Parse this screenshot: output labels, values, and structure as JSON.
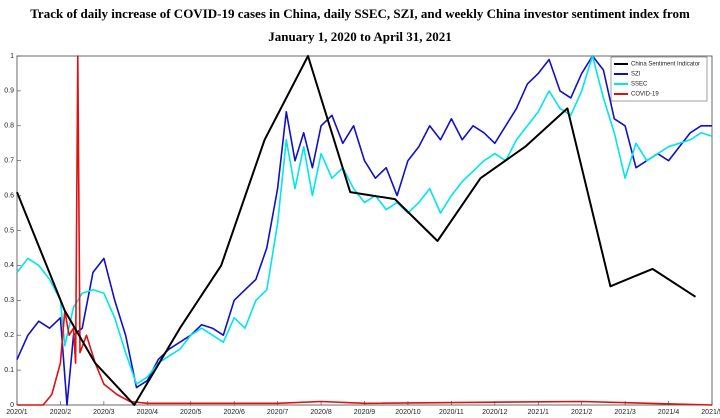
{
  "chart_data": {
    "type": "line",
    "title": [
      "Track of daily increase of COVID-19 cases in China, daily SSEC, SZI, and weekly China investor sentiment index from",
      "January 1, 2020 to April 31, 2021"
    ],
    "xlim": [
      0,
      16
    ],
    "xticks": [
      {
        "value": 0,
        "label": "2020/1"
      },
      {
        "value": 1,
        "label": "2020/2"
      },
      {
        "value": 2,
        "label": "2020/3"
      },
      {
        "value": 3,
        "label": "2020/4"
      },
      {
        "value": 4,
        "label": "2020/5"
      },
      {
        "value": 5,
        "label": "2020/6"
      },
      {
        "value": 6,
        "label": "2020/7"
      },
      {
        "value": 7,
        "label": "2020/8"
      },
      {
        "value": 8,
        "label": "2020/9"
      },
      {
        "value": 9,
        "label": "2020/10"
      },
      {
        "value": 10,
        "label": "2020/11"
      },
      {
        "value": 11,
        "label": "2020/12"
      },
      {
        "value": 12,
        "label": "2021/1"
      },
      {
        "value": 13,
        "label": "2021/2"
      },
      {
        "value": 14,
        "label": "2021/3"
      },
      {
        "value": 15,
        "label": "2021/4"
      },
      {
        "value": 16,
        "label": "2021/5"
      }
    ],
    "ylim": [
      0,
      1
    ],
    "yticks": [
      0,
      0.1,
      0.2,
      0.3,
      0.4,
      0.5,
      0.6,
      0.7,
      0.8,
      0.9,
      1
    ],
    "grid": false,
    "legend": "top-right",
    "series": [
      {
        "name": "China Sentiment Indicator",
        "color": "#000000",
        "width": 2,
        "x": [
          0,
          1.1,
          1.8,
          2.7,
          3.75,
          4.7,
          5.7,
          6.7,
          7.67,
          8.7,
          9.68,
          10.67,
          11.7,
          12.67,
          13.66,
          14.63,
          15.62
        ],
        "values": [
          0.61,
          0.27,
          0.12,
          0,
          0.22,
          0.4,
          0.76,
          1.0,
          0.61,
          0.59,
          0.47,
          0.65,
          0.74,
          0.85,
          0.34,
          0.39,
          0.31
        ]
      },
      {
        "name": "SZI",
        "color": "#1010c8",
        "width": 1.6,
        "x": [
          0,
          0.25,
          0.5,
          0.75,
          1.0,
          1.15,
          1.3,
          1.5,
          1.75,
          2.0,
          2.25,
          2.5,
          2.75,
          3.0,
          3.25,
          3.5,
          3.75,
          4.0,
          4.25,
          4.5,
          4.75,
          5.0,
          5.25,
          5.5,
          5.75,
          6.0,
          6.2,
          6.4,
          6.6,
          6.8,
          7.0,
          7.25,
          7.5,
          7.75,
          8.0,
          8.25,
          8.5,
          8.75,
          9.0,
          9.25,
          9.5,
          9.75,
          10.0,
          10.25,
          10.5,
          10.75,
          11.0,
          11.25,
          11.5,
          11.75,
          12.0,
          12.25,
          12.5,
          12.75,
          13.0,
          13.25,
          13.5,
          13.75,
          14.0,
          14.25,
          14.5,
          14.75,
          15.0,
          15.25,
          15.5,
          15.75,
          16.0
        ],
        "values": [
          0.13,
          0.2,
          0.24,
          0.22,
          0.25,
          0.0,
          0.2,
          0.22,
          0.38,
          0.42,
          0.3,
          0.2,
          0.05,
          0.07,
          0.13,
          0.16,
          0.18,
          0.2,
          0.23,
          0.22,
          0.2,
          0.3,
          0.33,
          0.36,
          0.45,
          0.62,
          0.84,
          0.7,
          0.78,
          0.68,
          0.8,
          0.83,
          0.75,
          0.8,
          0.7,
          0.65,
          0.68,
          0.6,
          0.7,
          0.74,
          0.8,
          0.76,
          0.82,
          0.76,
          0.8,
          0.78,
          0.75,
          0.8,
          0.85,
          0.92,
          0.95,
          0.99,
          0.9,
          0.88,
          0.95,
          1.0,
          0.96,
          0.82,
          0.8,
          0.68,
          0.7,
          0.72,
          0.7,
          0.74,
          0.78,
          0.8,
          0.8
        ]
      },
      {
        "name": "SSEC",
        "color": "#00e5ee",
        "width": 1.6,
        "x": [
          0,
          0.25,
          0.5,
          0.75,
          1.0,
          1.1,
          1.3,
          1.5,
          1.75,
          2.0,
          2.25,
          2.5,
          2.75,
          3.0,
          3.25,
          3.5,
          3.75,
          4.0,
          4.25,
          4.5,
          4.75,
          5.0,
          5.25,
          5.5,
          5.75,
          6.0,
          6.2,
          6.4,
          6.6,
          6.8,
          7.0,
          7.25,
          7.5,
          7.75,
          8.0,
          8.25,
          8.5,
          8.75,
          9.0,
          9.25,
          9.5,
          9.75,
          10.0,
          10.25,
          10.5,
          10.75,
          11.0,
          11.25,
          11.5,
          11.75,
          12.0,
          12.25,
          12.5,
          12.75,
          13.0,
          13.25,
          13.5,
          13.75,
          14.0,
          14.25,
          14.5,
          14.75,
          15.0,
          15.25,
          15.5,
          15.75,
          16.0
        ],
        "values": [
          0.38,
          0.42,
          0.4,
          0.36,
          0.3,
          0.17,
          0.28,
          0.32,
          0.33,
          0.32,
          0.25,
          0.15,
          0.06,
          0.08,
          0.12,
          0.14,
          0.16,
          0.2,
          0.22,
          0.2,
          0.18,
          0.25,
          0.22,
          0.3,
          0.33,
          0.52,
          0.76,
          0.62,
          0.74,
          0.6,
          0.72,
          0.65,
          0.68,
          0.62,
          0.58,
          0.6,
          0.56,
          0.58,
          0.55,
          0.58,
          0.62,
          0.55,
          0.6,
          0.64,
          0.67,
          0.7,
          0.72,
          0.7,
          0.76,
          0.8,
          0.84,
          0.9,
          0.85,
          0.83,
          0.9,
          1.0,
          0.88,
          0.78,
          0.65,
          0.75,
          0.7,
          0.72,
          0.74,
          0.75,
          0.76,
          0.78,
          0.77
        ]
      },
      {
        "name": "COVID-19",
        "color": "#e01010",
        "width": 1.6,
        "x": [
          0,
          0.6,
          0.8,
          1.0,
          1.1,
          1.2,
          1.3,
          1.35,
          1.4,
          1.45,
          1.6,
          1.8,
          2.0,
          2.3,
          2.6,
          3.0,
          6.0,
          7.0,
          8.0,
          13.0,
          16.0
        ],
        "values": [
          0,
          0,
          0.03,
          0.12,
          0.27,
          0.2,
          0.22,
          0.12,
          1.0,
          0.15,
          0.2,
          0.12,
          0.06,
          0.03,
          0.01,
          0.005,
          0.005,
          0.01,
          0.005,
          0.01,
          0
        ]
      }
    ]
  }
}
